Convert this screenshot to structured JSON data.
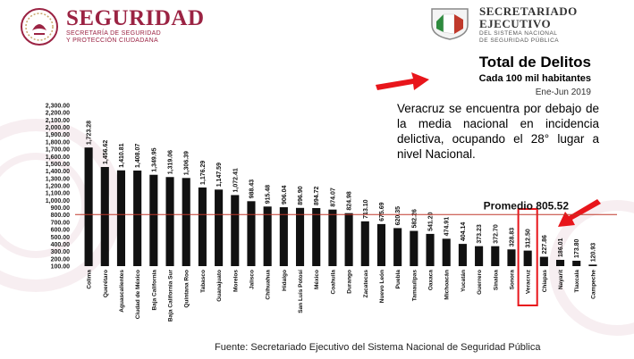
{
  "header": {
    "left_title": "SEGURIDAD",
    "left_subtitle_1": "SECRETARÍA DE SEGURIDAD",
    "left_subtitle_2": "Y PROTECCIÓN CIUDADANA",
    "right_title_1": "SECRETARIADO",
    "right_title_2": "EJECUTIVO",
    "right_subtitle_1": "DEL SISTEMA NACIONAL",
    "right_subtitle_2": "DE SEGURIDAD PÚBLICA"
  },
  "title_block": {
    "main": "Total de Delitos",
    "sub": "Cada 100 mil habitantes",
    "period": "Ene-Jun 2019"
  },
  "callout_text": "Veracruz se encuentra por debajo de la media nacional en incidencia delictiva, ocupando el 28° lugar a nivel Nacional.",
  "source_text": "Fuente: Secretariado Ejecutivo del Sistema Nacional de Seguridad Pública",
  "colors": {
    "bar": "#111111",
    "average_line": "#c0392b",
    "highlight": "#e8151b",
    "brand": "#9b2343"
  },
  "chart_data": {
    "type": "bar",
    "categories": [
      "Colima",
      "Querétaro",
      "Aguascalientes",
      "Ciudad de México",
      "Baja California",
      "Baja California Sur",
      "Quintana Roo",
      "Tabasco",
      "Guanajuato",
      "Morelos",
      "Jalisco",
      "Chihuahua",
      "Hidalgo",
      "San Luis Potosí",
      "México",
      "Coahuila",
      "Durango",
      "Zacatecas",
      "Nuevo León",
      "Puebla",
      "Tamaulipas",
      "Oaxaca",
      "Michoacán",
      "Yucatán",
      "Guerrero",
      "Sinaloa",
      "Sonora",
      "Veracruz",
      "Chiapas",
      "Nayarit",
      "Tlaxcala",
      "Campeche"
    ],
    "values": [
      1723.28,
      1456.62,
      1410.81,
      1408.07,
      1349.95,
      1319.06,
      1306.39,
      1176.29,
      1147.59,
      1072.41,
      988.43,
      915.48,
      906.04,
      896.9,
      894.72,
      874.07,
      824.98,
      713.1,
      675.69,
      620.35,
      582.26,
      541.2,
      474.91,
      404.14,
      373.23,
      372.7,
      328.83,
      312.5,
      227.86,
      186.01,
      173.8,
      120.93
    ],
    "value_labels": [
      "1,723.28",
      "1,456.62",
      "1,410.81",
      "1,408.07",
      "1,349.95",
      "1,319.06",
      "1,306.39",
      "1,176.29",
      "1,147.59",
      "1,072.41",
      "988.43",
      "915.48",
      "906.04",
      "896.90",
      "894.72",
      "874.07",
      "824.98",
      "713.10",
      "675.69",
      "620.35",
      "582.26",
      "541.20",
      "474.91",
      "404.14",
      "373.23",
      "372.70",
      "328.83",
      "312.50",
      "227.86",
      "186.01",
      "173.80",
      "120.93"
    ],
    "yticks": [
      "100.00",
      "200.00",
      "300.00",
      "400.00",
      "500.00",
      "600.00",
      "700.00",
      "800.00",
      "900.00",
      "1,000.00",
      "1,100.00",
      "1,200.00",
      "1,300.00",
      "1,400.00",
      "1,500.00",
      "1,600.00",
      "1,700.00",
      "1,800.00",
      "1,900.00",
      "2,000.00",
      "2,100.00",
      "2,200.00",
      "2,300.00"
    ],
    "ylim": [
      100,
      2300
    ],
    "average": {
      "label": "Promedio 805.52",
      "value": 805.52
    },
    "highlight_category": "Veracruz",
    "grid": false,
    "title": "Total de Delitos",
    "xlabel": "",
    "ylabel": ""
  }
}
